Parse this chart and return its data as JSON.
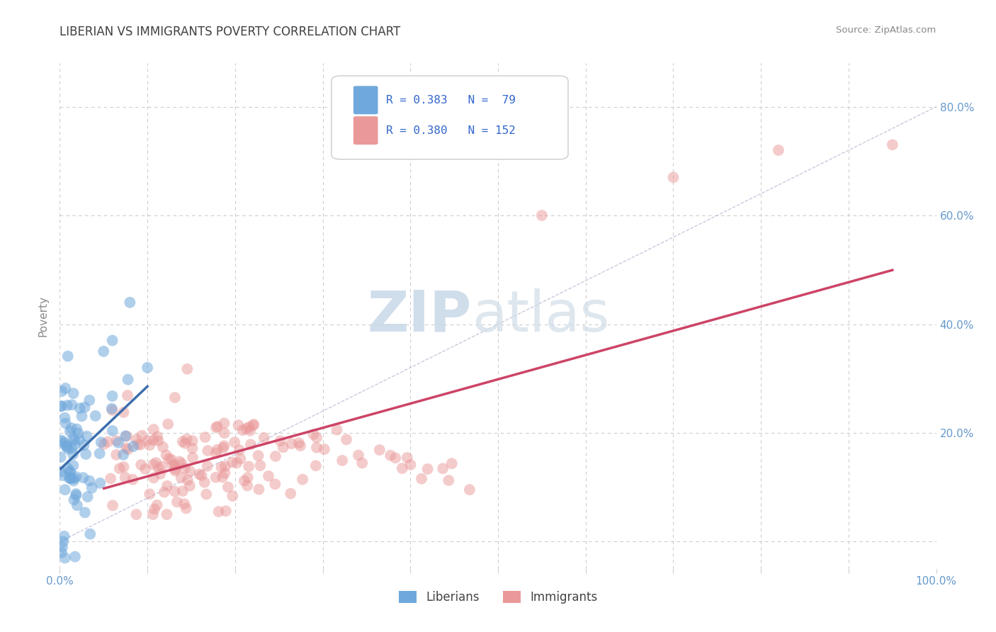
{
  "title": "LIBERIAN VS IMMIGRANTS POVERTY CORRELATION CHART",
  "source_text": "Source: ZipAtlas.com",
  "ylabel": "Poverty",
  "xlim": [
    0,
    1.0
  ],
  "ylim": [
    -0.05,
    0.88
  ],
  "xticks": [
    0.0,
    0.1,
    0.2,
    0.3,
    0.4,
    0.5,
    0.6,
    0.7,
    0.8,
    0.9,
    1.0
  ],
  "xticklabels": [
    "0.0%",
    "",
    "",
    "",
    "",
    "",
    "",
    "",
    "",
    "",
    "100.0%"
  ],
  "yticks": [
    0.0,
    0.2,
    0.4,
    0.6,
    0.8
  ],
  "yticklabels_right": [
    "",
    "20.0%",
    "40.0%",
    "60.0%",
    "80.0%"
  ],
  "blue_color": "#6fa8dc",
  "pink_color": "#ea9999",
  "blue_line_color": "#3d6fad",
  "pink_line_color": "#cc4466",
  "legend_R1": "0.383",
  "legend_N1": "79",
  "legend_R2": "0.380",
  "legend_N2": "152",
  "watermark_zip": "ZIP",
  "watermark_atlas": "atlas",
  "title_color": "#404040",
  "axis_label_color": "#6699cc",
  "grid_color": "#cccccc",
  "diag_color": "#aaaacc",
  "background_color": "#ffffff",
  "legend_text_color": "#3366cc",
  "ylabel_color": "#888888"
}
